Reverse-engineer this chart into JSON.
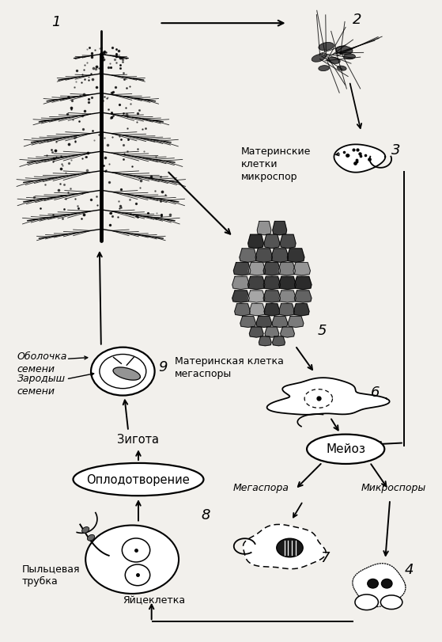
{
  "bg_color": "#f2f0ec",
  "labels": {
    "1": "1",
    "2": "2",
    "3": "3",
    "4": "4",
    "5": "5",
    "6": "6",
    "7": "7",
    "8": "8",
    "9": "9"
  },
  "texts": {
    "mat_mikro": "Материнские\nклетки\nмикроспор",
    "mat_mega": "Материнская клетка\nмегаспоры",
    "meioz": "Мейоз",
    "megaspora": "Мегаспора",
    "mikrospory": "Микроспоры",
    "zigota": "Зигота",
    "oplod": "Оплодотворение",
    "obolochka": "Оболочка\nсемени",
    "zarodysh": "Зародыш\nсемени",
    "pyltsevaya": "Пыльцевая\nтрубка",
    "yaytse": "Яйцеклетка"
  }
}
